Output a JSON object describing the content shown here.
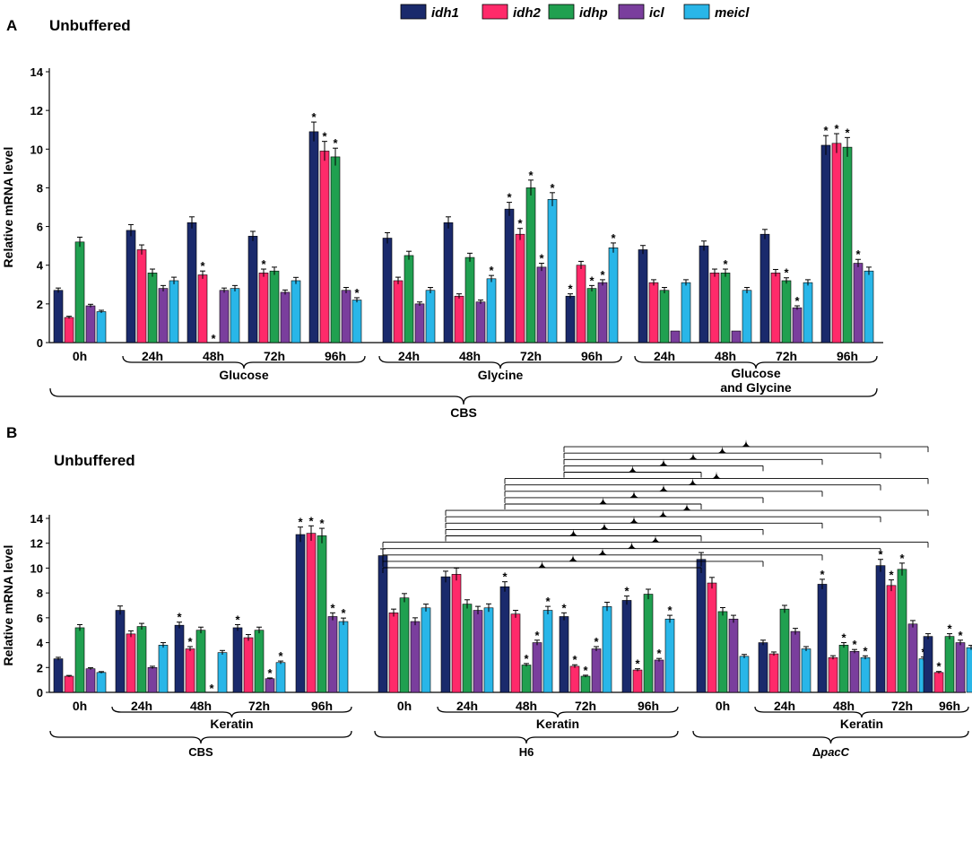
{
  "legend": [
    {
      "name": "idh1",
      "color": "#1a2a6c"
    },
    {
      "name": "idh2",
      "color": "#ff2a6a"
    },
    {
      "name": "idhp",
      "color": "#20a050"
    },
    {
      "name": "icl",
      "color": "#7a3e9d"
    },
    {
      "name": "meicl",
      "color": "#29b6e8"
    }
  ],
  "chart_data": [
    {
      "type": "bar",
      "panel": "A",
      "title": "Unbuffered",
      "ylabel": "Relative mRNA level",
      "ylim": [
        0,
        14
      ],
      "yticks": [
        0,
        2,
        4,
        6,
        8,
        10,
        12,
        14
      ],
      "series_names": [
        "idh1",
        "idh2",
        "idhp",
        "icl",
        "meicl"
      ],
      "categories": [
        "0h",
        "24h",
        "48h",
        "72h",
        "96h",
        "24h",
        "48h",
        "72h",
        "96h",
        "24h",
        "48h",
        "72h",
        "96h"
      ],
      "values": [
        [
          2.7,
          1.3,
          5.2,
          1.9,
          1.6
        ],
        [
          5.8,
          4.8,
          3.6,
          2.8,
          3.2
        ],
        [
          6.2,
          3.5,
          0.0,
          2.7,
          2.8
        ],
        [
          5.5,
          3.6,
          3.7,
          2.6,
          3.2
        ],
        [
          10.9,
          9.9,
          9.6,
          2.7,
          2.2
        ],
        [
          5.4,
          3.2,
          4.5,
          2.0,
          2.7
        ],
        [
          6.2,
          2.4,
          4.4,
          2.1,
          3.3
        ],
        [
          6.9,
          5.6,
          8.0,
          3.9,
          7.4
        ],
        [
          2.4,
          4.0,
          2.8,
          3.1,
          4.9
        ],
        [
          4.8,
          3.1,
          2.7,
          0.6,
          3.1
        ],
        [
          5.0,
          3.6,
          3.6,
          0.6,
          2.7
        ],
        [
          5.6,
          3.6,
          3.2,
          1.8,
          3.1
        ],
        [
          10.2,
          10.3,
          10.1,
          4.1,
          3.7
        ]
      ],
      "errors": [
        [
          0.12,
          0.06,
          0.25,
          0.08,
          0.07
        ],
        [
          0.3,
          0.25,
          0.2,
          0.15,
          0.18
        ],
        [
          0.3,
          0.2,
          0.0,
          0.12,
          0.15
        ],
        [
          0.25,
          0.2,
          0.2,
          0.12,
          0.17
        ],
        [
          0.5,
          0.5,
          0.45,
          0.15,
          0.12
        ],
        [
          0.28,
          0.18,
          0.22,
          0.1,
          0.15
        ],
        [
          0.3,
          0.12,
          0.22,
          0.1,
          0.17
        ],
        [
          0.35,
          0.3,
          0.4,
          0.2,
          0.35
        ],
        [
          0.12,
          0.2,
          0.15,
          0.15,
          0.25
        ],
        [
          0.22,
          0.15,
          0.15,
          0.0,
          0.15
        ],
        [
          0.25,
          0.2,
          0.2,
          0.0,
          0.15
        ],
        [
          0.25,
          0.18,
          0.15,
          0.1,
          0.15
        ],
        [
          0.5,
          0.5,
          0.5,
          0.2,
          0.2
        ]
      ],
      "significant": [
        [
          0,
          0,
          0,
          0,
          0
        ],
        [
          0,
          0,
          0,
          0,
          0
        ],
        [
          0,
          1,
          1,
          0,
          0
        ],
        [
          0,
          1,
          0,
          0,
          0
        ],
        [
          1,
          1,
          1,
          0,
          1
        ],
        [
          0,
          0,
          0,
          0,
          0
        ],
        [
          0,
          0,
          0,
          0,
          1
        ],
        [
          1,
          1,
          1,
          1,
          1
        ],
        [
          1,
          0,
          1,
          1,
          1
        ],
        [
          0,
          0,
          0,
          0,
          0
        ],
        [
          0,
          0,
          1,
          0,
          0
        ],
        [
          0,
          0,
          1,
          1,
          0
        ],
        [
          1,
          1,
          1,
          1,
          0
        ]
      ],
      "group_labels": [
        {
          "text": "Glucose",
          "from": 1,
          "to": 4
        },
        {
          "text": "Glycine",
          "from": 5,
          "to": 8
        },
        {
          "text": "Glucose and Glycine",
          "from": 9,
          "to": 12
        }
      ],
      "outer_label": {
        "text": "CBS",
        "from": 0,
        "to": 12
      },
      "star_symbol": "*"
    },
    {
      "type": "bar",
      "panel": "B",
      "title": "Unbuffered",
      "ylabel": "Relative mRNA level",
      "ylim": [
        0,
        14
      ],
      "yticks": [
        0,
        2,
        4,
        6,
        8,
        10,
        12,
        14
      ],
      "series_names": [
        "idh1",
        "idh2",
        "idhp",
        "icl",
        "meicl"
      ],
      "categories": [
        "0h",
        "24h",
        "48h",
        "72h",
        "96h",
        "0h",
        "24h",
        "48h",
        "72h",
        "96h",
        "0h",
        "24h",
        "48h",
        "72h",
        "96h"
      ],
      "values": [
        [
          2.7,
          1.3,
          5.2,
          1.9,
          1.6
        ],
        [
          6.6,
          4.7,
          5.3,
          2.0,
          3.8
        ],
        [
          5.4,
          3.5,
          5.0,
          0.0,
          3.2
        ],
        [
          5.2,
          4.4,
          5.0,
          1.1,
          2.4
        ],
        [
          12.7,
          12.8,
          12.6,
          6.1,
          5.7
        ],
        [
          11.0,
          6.4,
          7.6,
          5.7,
          6.8
        ],
        [
          9.3,
          9.5,
          7.1,
          6.6,
          6.8
        ],
        [
          8.5,
          6.3,
          2.2,
          4.0,
          6.6
        ],
        [
          6.1,
          2.1,
          1.3,
          3.5,
          6.9
        ],
        [
          7.4,
          1.8,
          7.9,
          2.6,
          5.9
        ],
        [
          10.7,
          8.8,
          6.5,
          5.9,
          2.9
        ],
        [
          4.0,
          3.1,
          6.7,
          4.9,
          3.5
        ],
        [
          8.7,
          2.8,
          3.8,
          3.3,
          2.8
        ],
        [
          10.2,
          8.6,
          9.9,
          5.5,
          2.7
        ],
        [
          4.5,
          1.6,
          4.5,
          4.0,
          3.6
        ]
      ],
      "errors": [
        [
          0.12,
          0.06,
          0.25,
          0.08,
          0.07
        ],
        [
          0.35,
          0.25,
          0.25,
          0.1,
          0.2
        ],
        [
          0.25,
          0.18,
          0.25,
          0.0,
          0.17
        ],
        [
          0.25,
          0.25,
          0.25,
          0.06,
          0.12
        ],
        [
          0.6,
          0.6,
          0.6,
          0.3,
          0.28
        ],
        [
          0.55,
          0.3,
          0.35,
          0.3,
          0.3
        ],
        [
          0.45,
          0.5,
          0.35,
          0.32,
          0.32
        ],
        [
          0.4,
          0.3,
          0.12,
          0.2,
          0.32
        ],
        [
          0.3,
          0.12,
          0.08,
          0.18,
          0.35
        ],
        [
          0.35,
          0.1,
          0.4,
          0.13,
          0.3
        ],
        [
          0.55,
          0.45,
          0.32,
          0.3,
          0.15
        ],
        [
          0.2,
          0.15,
          0.3,
          0.25,
          0.18
        ],
        [
          0.4,
          0.15,
          0.2,
          0.15,
          0.14
        ],
        [
          0.5,
          0.45,
          0.5,
          0.28,
          0.14
        ],
        [
          0.22,
          0.08,
          0.22,
          0.2,
          0.18
        ]
      ],
      "significant": [
        [
          0,
          0,
          0,
          0,
          0
        ],
        [
          0,
          0,
          0,
          0,
          0
        ],
        [
          1,
          1,
          0,
          1,
          0
        ],
        [
          1,
          0,
          0,
          1,
          1
        ],
        [
          1,
          1,
          1,
          1,
          1
        ],
        [
          0,
          0,
          0,
          0,
          0
        ],
        [
          0,
          0,
          0,
          0,
          0
        ],
        [
          1,
          0,
          1,
          1,
          1
        ],
        [
          1,
          1,
          1,
          1,
          0
        ],
        [
          1,
          1,
          0,
          1,
          1
        ],
        [
          0,
          0,
          0,
          0,
          0
        ],
        [
          0,
          0,
          0,
          0,
          0
        ],
        [
          1,
          0,
          1,
          1,
          1
        ],
        [
          1,
          1,
          1,
          0,
          1
        ],
        [
          0,
          1,
          1,
          1,
          0
        ]
      ],
      "group_labels": [
        {
          "text": "Keratin",
          "from": 1,
          "to": 4
        },
        {
          "text": "Keratin",
          "from": 6,
          "to": 9
        },
        {
          "text": "Keratin",
          "from": 11,
          "to": 14
        }
      ],
      "strain_labels": [
        {
          "text": "CBS",
          "from": 0,
          "to": 4
        },
        {
          "text": "H6",
          "from": 5,
          "to": 9
        },
        {
          "text": "ΔpacC",
          "from": 10,
          "to": 14
        }
      ],
      "comparisons": [
        [
          5,
          10
        ],
        [
          5,
          11
        ],
        [
          5,
          12
        ],
        [
          5,
          13
        ],
        [
          5,
          14
        ],
        [
          6,
          10
        ],
        [
          6,
          11
        ],
        [
          6,
          12
        ],
        [
          6,
          13
        ],
        [
          6,
          14
        ],
        [
          7,
          10
        ],
        [
          7,
          11
        ],
        [
          7,
          12
        ],
        [
          7,
          13
        ],
        [
          7,
          14
        ],
        [
          8,
          10
        ],
        [
          8,
          11
        ],
        [
          8,
          12
        ],
        [
          8,
          13
        ],
        [
          8,
          14
        ]
      ],
      "star_symbol": "*"
    }
  ],
  "panel_labels": {
    "a": "A",
    "b": "B"
  }
}
